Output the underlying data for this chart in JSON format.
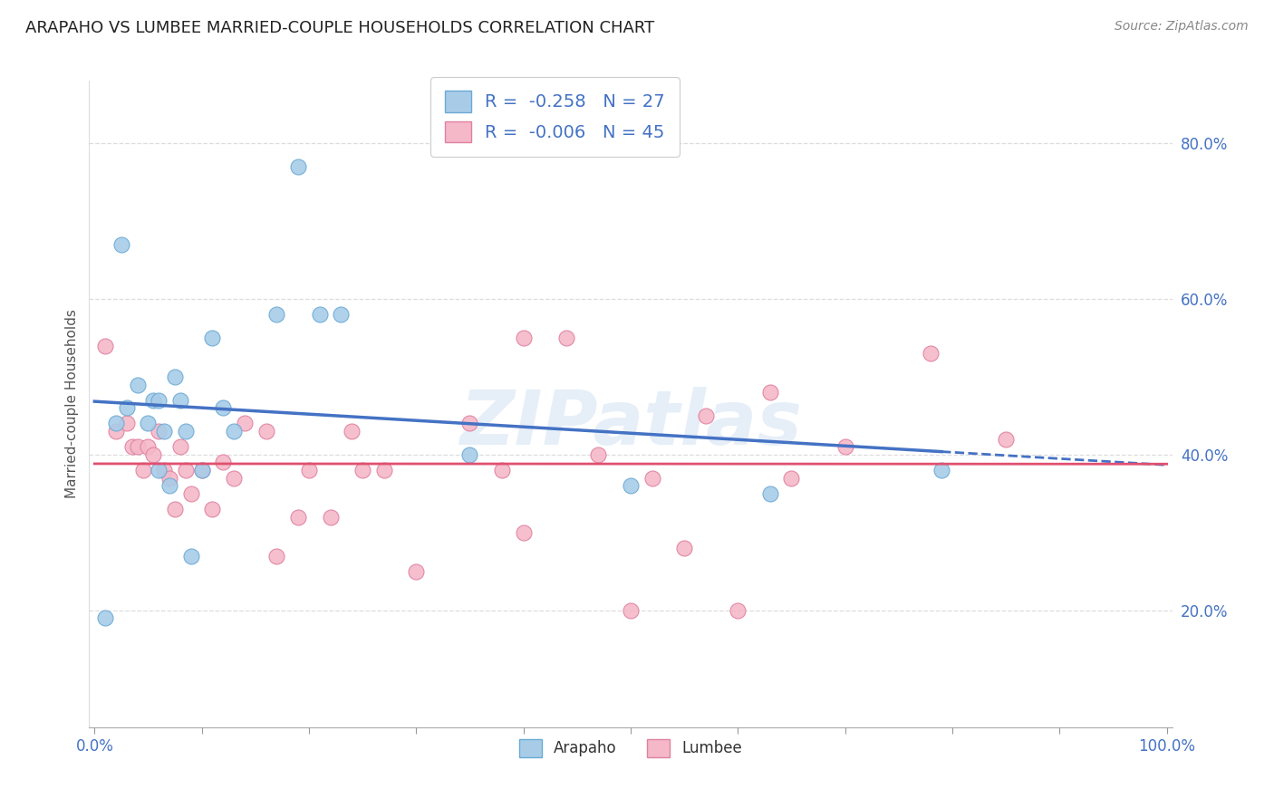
{
  "title": "ARAPAHO VS LUMBEE MARRIED-COUPLE HOUSEHOLDS CORRELATION CHART",
  "source": "Source: ZipAtlas.com",
  "ylabel": "Married-couple Households",
  "arapaho_R": -0.258,
  "arapaho_N": 27,
  "lumbee_R": -0.006,
  "lumbee_N": 45,
  "arapaho_color": "#A8CCE8",
  "arapaho_edge": "#6AAAD4",
  "arapaho_line": "#4472C4",
  "lumbee_color": "#F4B8C8",
  "lumbee_edge": "#E080A0",
  "lumbee_line": "#E05070",
  "arapaho_x": [
    0.01,
    0.02,
    0.025,
    0.03,
    0.04,
    0.05,
    0.055,
    0.06,
    0.065,
    0.07,
    0.075,
    0.08,
    0.085,
    0.09,
    0.1,
    0.11,
    0.12,
    0.13,
    0.17,
    0.19,
    0.21,
    0.23,
    0.35,
    0.5,
    0.63,
    0.79,
    0.06
  ],
  "arapaho_y": [
    0.19,
    0.44,
    0.67,
    0.46,
    0.49,
    0.44,
    0.47,
    0.47,
    0.43,
    0.36,
    0.5,
    0.47,
    0.43,
    0.27,
    0.38,
    0.55,
    0.46,
    0.43,
    0.58,
    0.77,
    0.58,
    0.58,
    0.4,
    0.36,
    0.35,
    0.38,
    0.38
  ],
  "lumbee_x": [
    0.01,
    0.02,
    0.03,
    0.035,
    0.04,
    0.045,
    0.05,
    0.055,
    0.06,
    0.065,
    0.07,
    0.075,
    0.08,
    0.085,
    0.09,
    0.1,
    0.11,
    0.12,
    0.13,
    0.14,
    0.16,
    0.17,
    0.19,
    0.2,
    0.22,
    0.24,
    0.27,
    0.3,
    0.35,
    0.38,
    0.4,
    0.44,
    0.47,
    0.5,
    0.52,
    0.55,
    0.57,
    0.6,
    0.63,
    0.65,
    0.7,
    0.78,
    0.85,
    0.4,
    0.25
  ],
  "lumbee_y": [
    0.54,
    0.43,
    0.44,
    0.41,
    0.41,
    0.38,
    0.41,
    0.4,
    0.43,
    0.38,
    0.37,
    0.33,
    0.41,
    0.38,
    0.35,
    0.38,
    0.33,
    0.39,
    0.37,
    0.44,
    0.43,
    0.27,
    0.32,
    0.38,
    0.32,
    0.43,
    0.38,
    0.25,
    0.44,
    0.38,
    0.55,
    0.55,
    0.4,
    0.2,
    0.37,
    0.28,
    0.45,
    0.2,
    0.48,
    0.37,
    0.41,
    0.53,
    0.42,
    0.3,
    0.38
  ],
  "xlim": [
    -0.005,
    1.005
  ],
  "ylim": [
    0.05,
    0.88
  ],
  "yticks": [
    0.2,
    0.4,
    0.6,
    0.8
  ],
  "xticks": [
    0.0,
    0.1,
    0.2,
    0.3,
    0.4,
    0.5,
    0.6,
    0.7,
    0.8,
    0.9,
    1.0
  ],
  "xlabel_ticks": [
    0.0,
    1.0
  ],
  "background_color": "#FFFFFF",
  "grid_color": "#DDDDDD",
  "title_fontsize": 13,
  "tick_fontsize": 12,
  "ylabel_fontsize": 11,
  "source_fontsize": 10
}
